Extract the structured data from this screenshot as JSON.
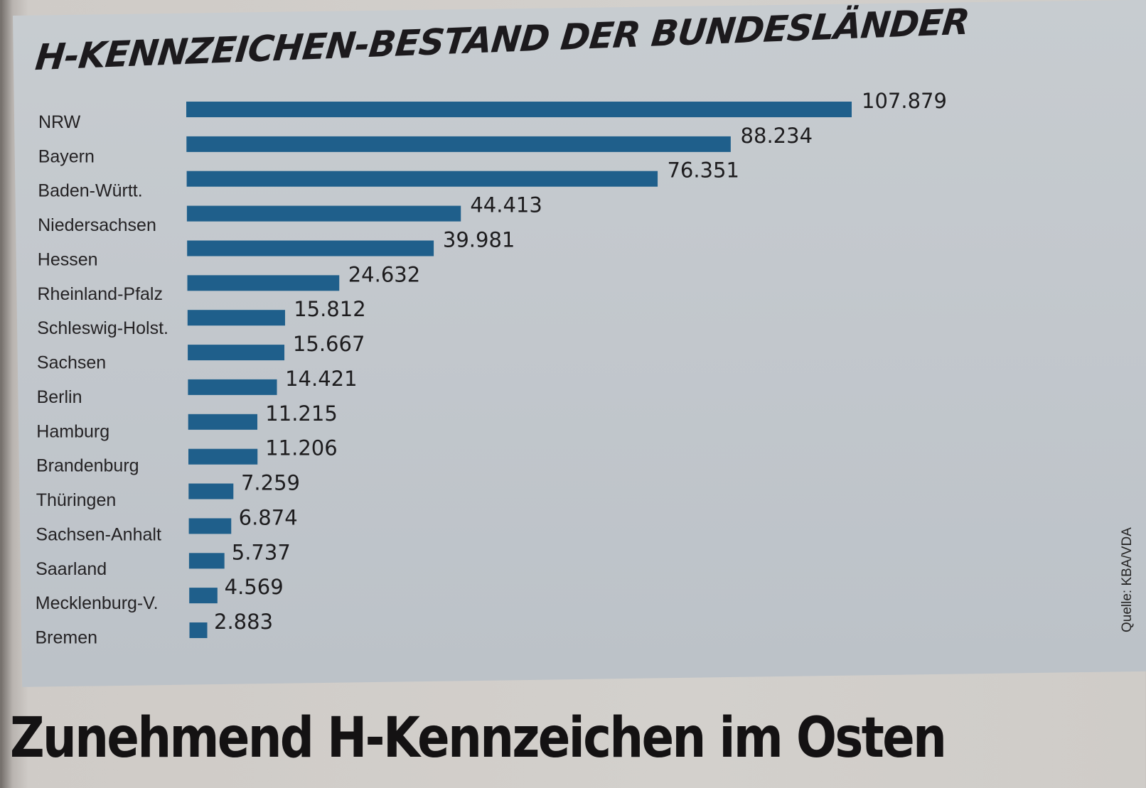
{
  "chart_data": {
    "type": "bar",
    "orientation": "horizontal",
    "title": "H-KENNZEICHEN-BESTAND DER BUNDESLÄNDER",
    "xlabel": "",
    "ylabel": "",
    "grid": false,
    "legend": "none",
    "bar_color": "#1f5f8b",
    "categories": [
      "NRW",
      "Bayern",
      "Baden-Württ.",
      "Niedersachsen",
      "Hessen",
      "Rheinland-Pfalz",
      "Schleswig-Holst.",
      "Sachsen",
      "Berlin",
      "Hamburg",
      "Brandenburg",
      "Thüringen",
      "Sachsen-Anhalt",
      "Saarland",
      "Mecklenburg-V.",
      "Bremen"
    ],
    "values": [
      107879,
      88234,
      76351,
      44413,
      39981,
      24632,
      15812,
      15667,
      14421,
      11215,
      11206,
      7259,
      6874,
      5737,
      4569,
      2883
    ],
    "value_labels": [
      "107.879",
      "88.234",
      "76.351",
      "44.413",
      "39.981",
      "24.632",
      "15.812",
      "15.667",
      "14.421",
      "11.215",
      "11.206",
      "7.259",
      "6.874",
      "5.737",
      "4.569",
      "2.883"
    ],
    "xlim": [
      0,
      107879
    ],
    "source": "Quelle: KBA/VDA"
  },
  "headline": "Zunehmend H-Kennzeichen im Osten"
}
